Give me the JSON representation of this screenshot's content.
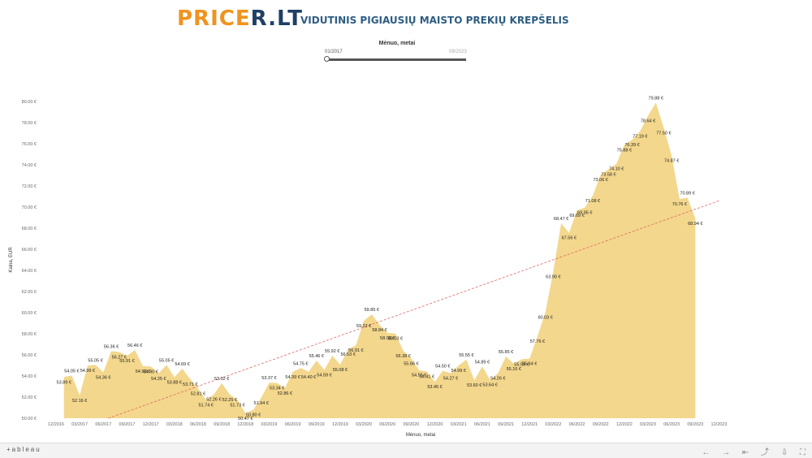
{
  "header": {
    "logo_part1": "PRICE",
    "logo_part2": "R.LT",
    "subtitle": "VIDUTINIS PIGIAUSIŲ MAISTO PREKIŲ KREPŠELIS"
  },
  "filter": {
    "title": "Mėnuo, metai",
    "from": "01/2017",
    "to": "09/2023"
  },
  "footer": {
    "brand": "+ableau",
    "icons": [
      "undo-icon",
      "redo-icon",
      "revert-icon",
      "share-icon",
      "download-icon",
      "fullscreen-icon"
    ]
  },
  "colors": {
    "area_fill": "#f3d78c",
    "trend_line": "#e06666",
    "logo_orange": "#f0931e",
    "logo_navy": "#1f3f66",
    "subtitle_blue": "#2e5d83"
  },
  "chart_data": {
    "type": "area",
    "xlabel": "Mėnuo, metai",
    "ylabel": "Kaina, EUR",
    "ylim": [
      50,
      80
    ],
    "yticks": [
      50,
      52,
      54,
      56,
      58,
      60,
      62,
      64,
      66,
      68,
      70,
      72,
      74,
      76,
      78,
      80
    ],
    "ytick_labels": [
      "50.00 €",
      "52.00 €",
      "54.00 €",
      "56.00 €",
      "58.00 €",
      "60.00 €",
      "62.00 €",
      "64.00 €",
      "66.00 €",
      "68.00 €",
      "70.00 €",
      "72.00 €",
      "74.00 €",
      "76.00 €",
      "78.00 €",
      "80.00 €"
    ],
    "xticks": [
      "12/2016",
      "03/2017",
      "06/2017",
      "09/2017",
      "12/2017",
      "03/2018",
      "06/2018",
      "09/2018",
      "12/2018",
      "03/2019",
      "06/2019",
      "09/2019",
      "12/2019",
      "03/2020",
      "06/2020",
      "09/2020",
      "12/2020",
      "03/2021",
      "06/2021",
      "09/2021",
      "12/2021",
      "03/2022",
      "06/2022",
      "09/2022",
      "12/2022",
      "03/2023",
      "06/2023",
      "09/2023",
      "12/2023"
    ],
    "trend_line": {
      "start_month": "01/2017",
      "start_value": 48.5,
      "end_month": "12/2023",
      "end_value": 70.6
    },
    "points": [
      {
        "month": "01/2017",
        "value": 53.89,
        "label": "53.89 €"
      },
      {
        "month": "02/2017",
        "value": 54.05,
        "label": "54.05 €"
      },
      {
        "month": "03/2017",
        "value": 52.16,
        "label": "52.16 €"
      },
      {
        "month": "04/2017",
        "value": 54.99,
        "label": "54.99 €"
      },
      {
        "month": "05/2017",
        "value": 55.05,
        "label": "55.05 €"
      },
      {
        "month": "06/2017",
        "value": 54.36,
        "label": "54.36 €"
      },
      {
        "month": "07/2017",
        "value": 56.36,
        "label": "56.36 €"
      },
      {
        "month": "08/2017",
        "value": 56.27,
        "label": "56.27 €"
      },
      {
        "month": "09/2017",
        "value": 55.91,
        "label": "55.91 €"
      },
      {
        "month": "10/2017",
        "value": 56.46,
        "label": "56.46 €"
      },
      {
        "month": "11/2017",
        "value": 54.93,
        "label": "54.93 €"
      },
      {
        "month": "12/2017",
        "value": 54.9,
        "label": "54.90 €"
      },
      {
        "month": "01/2018",
        "value": 54.25,
        "label": "54.25 €"
      },
      {
        "month": "02/2018",
        "value": 55.05,
        "label": "55.05 €"
      },
      {
        "month": "03/2018",
        "value": 53.88,
        "label": "53.88 €"
      },
      {
        "month": "04/2018",
        "value": 54.69,
        "label": "54.69 €"
      },
      {
        "month": "05/2018",
        "value": 53.71,
        "label": "53.71 €"
      },
      {
        "month": "06/2018",
        "value": 52.81,
        "label": "52.81 €"
      },
      {
        "month": "07/2018",
        "value": 51.74,
        "label": "51.74 €"
      },
      {
        "month": "08/2018",
        "value": 52.26,
        "label": "52.26 €"
      },
      {
        "month": "09/2018",
        "value": 53.32,
        "label": "53.32 €"
      },
      {
        "month": "10/2018",
        "value": 52.25,
        "label": "52.25 €"
      },
      {
        "month": "11/2018",
        "value": 51.73,
        "label": "51.73 €"
      },
      {
        "month": "12/2018",
        "value": 50.47,
        "label": "50.47 €"
      },
      {
        "month": "01/2019",
        "value": 50.8,
        "label": "50.80 €"
      },
      {
        "month": "02/2019",
        "value": 51.94,
        "label": "51.94 €"
      },
      {
        "month": "03/2019",
        "value": 53.37,
        "label": "53.37 €"
      },
      {
        "month": "04/2019",
        "value": 53.34,
        "label": "53.34 €"
      },
      {
        "month": "05/2019",
        "value": 52.86,
        "label": "52.86 €"
      },
      {
        "month": "06/2019",
        "value": 54.39,
        "label": "54.39 €"
      },
      {
        "month": "07/2019",
        "value": 54.75,
        "label": "54.75 €"
      },
      {
        "month": "08/2019",
        "value": 54.4,
        "label": "54.40 €"
      },
      {
        "month": "09/2019",
        "value": 55.46,
        "label": "55.46 €"
      },
      {
        "month": "10/2019",
        "value": 54.59,
        "label": "54.59 €"
      },
      {
        "month": "11/2019",
        "value": 55.92,
        "label": "55.92 €"
      },
      {
        "month": "12/2019",
        "value": 55.08,
        "label": "55.08 €"
      },
      {
        "month": "01/2020",
        "value": 56.53,
        "label": "56.53 €"
      },
      {
        "month": "02/2020",
        "value": 56.91,
        "label": "56.91 €"
      },
      {
        "month": "03/2020",
        "value": 59.22,
        "label": "59.22 €"
      },
      {
        "month": "04/2020",
        "value": 59.85,
        "label": "59.85 €"
      },
      {
        "month": "05/2020",
        "value": 58.84,
        "label": "58.84 €"
      },
      {
        "month": "06/2020",
        "value": 58.08,
        "label": "58.08 €"
      },
      {
        "month": "07/2020",
        "value": 58.03,
        "label": "58.03 €"
      },
      {
        "month": "08/2020",
        "value": 56.38,
        "label": "56.38 €"
      },
      {
        "month": "09/2020",
        "value": 55.66,
        "label": "55.66 €"
      },
      {
        "month": "10/2020",
        "value": 54.56,
        "label": "54.56 €"
      },
      {
        "month": "11/2020",
        "value": 54.41,
        "label": "54.41 €"
      },
      {
        "month": "12/2020",
        "value": 53.45,
        "label": "53.45 €"
      },
      {
        "month": "01/2021",
        "value": 54.5,
        "label": "54.50 €"
      },
      {
        "month": "02/2021",
        "value": 54.27,
        "label": "54.27 €"
      },
      {
        "month": "03/2021",
        "value": 54.99,
        "label": "54.99 €"
      },
      {
        "month": "04/2021",
        "value": 55.55,
        "label": "55.55 €"
      },
      {
        "month": "05/2021",
        "value": 53.6,
        "label": "53.60 €"
      },
      {
        "month": "06/2021",
        "value": 54.89,
        "label": "54.89 €"
      },
      {
        "month": "07/2021",
        "value": 53.64,
        "label": "53.64 €"
      },
      {
        "month": "08/2021",
        "value": 54.26,
        "label": "54.26 €"
      },
      {
        "month": "09/2021",
        "value": 55.85,
        "label": "55.85 €"
      },
      {
        "month": "10/2021",
        "value": 55.16,
        "label": "55.16 €"
      },
      {
        "month": "11/2021",
        "value": 55.59,
        "label": "55.59 €"
      },
      {
        "month": "12/2021",
        "value": 55.64,
        "label": "55.64 €"
      },
      {
        "month": "01/2022",
        "value": 57.76,
        "label": "57.76 €"
      },
      {
        "month": "02/2022",
        "value": 60.03,
        "label": "60.03 €"
      },
      {
        "month": "03/2022",
        "value": 63.9,
        "label": "63.90 €"
      },
      {
        "month": "04/2022",
        "value": 68.47,
        "label": "68.47 €"
      },
      {
        "month": "05/2022",
        "value": 67.56,
        "label": "67.56 €"
      },
      {
        "month": "06/2022",
        "value": 69.69,
        "label": "69.69 €"
      },
      {
        "month": "07/2022",
        "value": 69.95,
        "label": "69.95 €"
      },
      {
        "month": "08/2022",
        "value": 71.08,
        "label": "71.08 €"
      },
      {
        "month": "09/2022",
        "value": 73.06,
        "label": "73.06 €"
      },
      {
        "month": "10/2022",
        "value": 73.58,
        "label": "73.58 €"
      },
      {
        "month": "11/2022",
        "value": 74.1,
        "label": "74.10 €"
      },
      {
        "month": "12/2022",
        "value": 75.88,
        "label": "75.88 €"
      },
      {
        "month": "01/2023",
        "value": 76.39,
        "label": "76.39 €"
      },
      {
        "month": "02/2023",
        "value": 77.19,
        "label": "77.19 €"
      },
      {
        "month": "03/2023",
        "value": 78.64,
        "label": "78.64 €"
      },
      {
        "month": "04/2023",
        "value": 79.88,
        "label": "79.88 €"
      },
      {
        "month": "05/2023",
        "value": 77.5,
        "label": "77.50 €"
      },
      {
        "month": "06/2023",
        "value": 74.87,
        "label": "74.87 €"
      },
      {
        "month": "07/2023",
        "value": 70.76,
        "label": "70.76 €"
      },
      {
        "month": "08/2023",
        "value": 70.89,
        "label": "70.89 €"
      },
      {
        "month": "09/2023",
        "value": 68.94,
        "label": "68.94 €"
      }
    ]
  }
}
